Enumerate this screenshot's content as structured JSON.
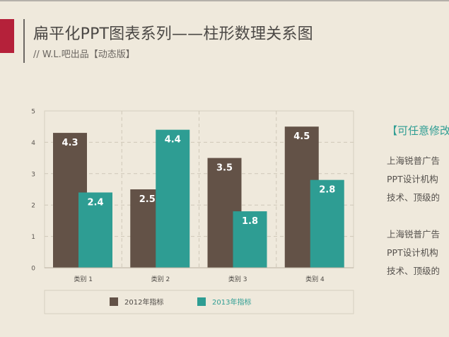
{
  "header": {
    "title": "扁平化PPT图表系列——柱形数理关系图",
    "subtitle": "// W.L.吧出品【动态版】"
  },
  "side_text": {
    "heading": "【可任意修改",
    "paragraphs": [
      [
        "上海锐普广告",
        "PPT设计机构",
        "技术、顶级的"
      ],
      [
        "上海锐普广告",
        "PPT设计机构",
        "技术、顶级的"
      ]
    ]
  },
  "colors": {
    "series_2012": "#635247",
    "series_2013": "#2e9d93",
    "background": "#efe9dc",
    "accent": "#b5213a"
  },
  "chart_data": {
    "type": "bar",
    "categories": [
      "类别 1",
      "类别 2",
      "类别 3",
      "类别 4"
    ],
    "series": [
      {
        "name": "2012年指标",
        "values": [
          4.3,
          2.5,
          3.5,
          4.5
        ],
        "labels": [
          "4.3",
          "2.5",
          "3.5",
          "4.5"
        ]
      },
      {
        "name": "2013年指标",
        "values": [
          2.4,
          4.4,
          1.8,
          2.8
        ],
        "labels": [
          "2.4",
          "4.4",
          "1.8",
          "2.8"
        ]
      }
    ],
    "ylim": [
      0,
      5
    ],
    "yticks": [
      "0",
      "1",
      "2",
      "3",
      "4",
      "5"
    ],
    "grid": true,
    "legend": "bottom",
    "data_labels": "inside-top"
  }
}
